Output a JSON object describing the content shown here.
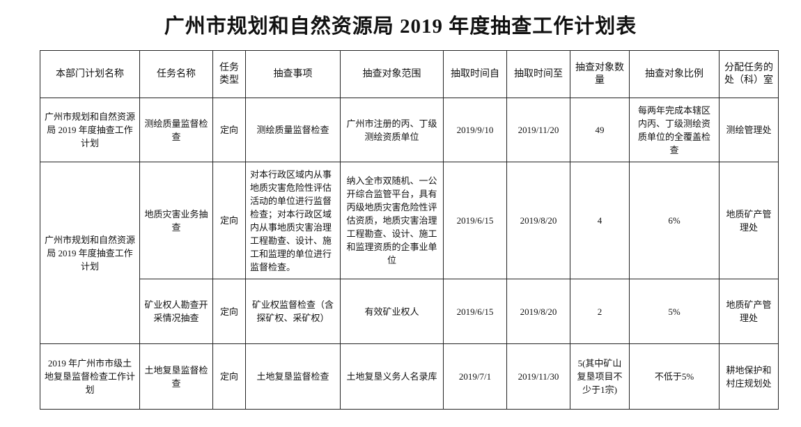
{
  "header": {
    "title": "广州市规划和自然资源局 2019 年度抽查工作计划表"
  },
  "table": {
    "columns": [
      "本部门计划名称",
      "任务名称",
      "任务类型",
      "抽查事项",
      "抽查对象范围",
      "抽取时间自",
      "抽取时间至",
      "抽查对象数量",
      "抽查对象比例",
      "分配任务的处（科）室"
    ],
    "groups": [
      {
        "plan": "广州市规划和自然资源局 2019 年度抽查工作计划",
        "tasks": [
          [
            "测绘质量监督检查",
            "定向",
            "测绘质量监督检查",
            "广州市注册的丙、丁级测绘资质单位",
            "2019/9/10",
            "2019/11/20",
            "49",
            "每两年完成本辖区内丙、丁级测绘资质单位的全覆盖检查",
            "测绘管理处"
          ]
        ]
      },
      {
        "plan": "广州市规划和自然资源局 2019 年度抽查工作计划",
        "tasks": [
          [
            "地质灾害业务抽查",
            "定向",
            "对本行政区域内从事地质灾害危险性评估活动的单位进行监督检查；对本行政区域内从事地质灾害治理工程勘查、设计、施工和监理的单位进行监督检查。",
            "纳入全市双随机、一公开综合监管平台，具有丙级地质灾害危险性评估资质，地质灾害治理工程勘查、设计、施工和监理资质的企事业单位",
            "2019/6/15",
            "2019/8/20",
            "4",
            "6%",
            "地质矿产管理处"
          ],
          [
            "矿业权人勘查开采情况抽查",
            "定向",
            "矿业权监督检查（含探矿权、采矿权）",
            "有效矿业权人",
            "2019/6/15",
            "2019/8/20",
            "2",
            "5%",
            "地质矿产管理处"
          ]
        ]
      },
      {
        "plan": "2019 年广州市市级土地复垦监督检查工作计划",
        "tasks": [
          [
            "土地复垦监督检查",
            "定向",
            "土地复垦监督检查",
            "土地复垦义务人名录库",
            "2019/7/1",
            "2019/11/30",
            "5(其中矿山复垦项目不少于1宗)",
            "不低于5%",
            "耕地保护和村庄规划处"
          ]
        ]
      }
    ]
  }
}
